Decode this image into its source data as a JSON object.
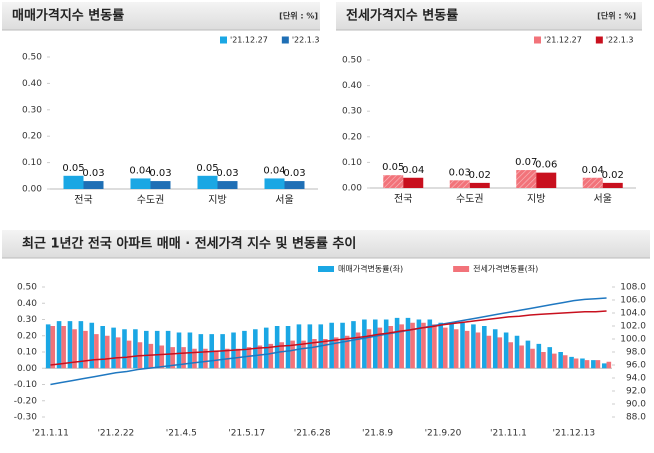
{
  "chart_data": [
    {
      "type": "bar",
      "title": "매매가격지수 변동률",
      "unit": "[단위 : %]",
      "categories": [
        "전국",
        "수도권",
        "지방",
        "서울"
      ],
      "series": [
        {
          "name": "'21.12.27",
          "color": "#1aa7e4",
          "values": [
            0.05,
            0.04,
            0.05,
            0.04
          ]
        },
        {
          "name": "'22.1.3",
          "color": "#1f6fb5",
          "values": [
            0.03,
            0.03,
            0.03,
            0.03
          ]
        }
      ],
      "ylim": [
        0,
        0.5
      ],
      "yticks": [
        {
          "value": 0,
          "label": "0.00"
        },
        {
          "value": 0.1,
          "label": "0.10"
        },
        {
          "value": 0.2,
          "label": "0.20"
        },
        {
          "value": 0.3,
          "label": "0.30"
        },
        {
          "value": 0.4,
          "label": "0.40"
        },
        {
          "value": 0.5,
          "label": "0.50"
        }
      ]
    },
    {
      "type": "bar",
      "title": "전세가격지수 변동률",
      "unit": "[단위 : %]",
      "categories": [
        "전국",
        "수도권",
        "지방",
        "서울"
      ],
      "series": [
        {
          "name": "'21.12.27",
          "color": "#f2737a",
          "hatch": true,
          "values": [
            0.05,
            0.03,
            0.07,
            0.04
          ]
        },
        {
          "name": "'22.1.3",
          "color": "#c8101e",
          "values": [
            0.04,
            0.02,
            0.06,
            0.02
          ]
        }
      ],
      "ylim": [
        0,
        0.5
      ],
      "yticks": [
        {
          "value": 0,
          "label": "0.00"
        },
        {
          "value": 0.1,
          "label": "0.10"
        },
        {
          "value": 0.2,
          "label": "0.20"
        },
        {
          "value": 0.3,
          "label": "0.30"
        },
        {
          "value": 0.4,
          "label": "0.40"
        },
        {
          "value": 0.5,
          "label": "0.50"
        }
      ]
    },
    {
      "type": "combo",
      "title": "최근 1년간 전국 아파트 매매 · 전세가격 지수 및 변동률 추이",
      "categories": [
        "'21.1.11",
        null,
        null,
        null,
        null,
        null,
        "'21.2.22",
        null,
        null,
        null,
        null,
        null,
        "'21.4.5",
        null,
        null,
        null,
        null,
        null,
        "'21.5.17",
        null,
        null,
        null,
        null,
        null,
        "'21.6.28",
        null,
        null,
        null,
        null,
        null,
        "'21.8.9",
        null,
        null,
        null,
        null,
        null,
        "'21.9.20",
        null,
        null,
        null,
        null,
        null,
        "'21.11.1",
        null,
        null,
        null,
        null,
        null,
        "'21.12.13",
        null,
        null,
        null
      ],
      "series": [
        {
          "name": "매매가격변동률(좌)",
          "type": "bar",
          "color": "#1aa7e4",
          "values": [
            0.27,
            0.29,
            0.29,
            0.29,
            0.28,
            0.26,
            0.25,
            0.24,
            0.24,
            0.23,
            0.23,
            0.23,
            0.22,
            0.22,
            0.21,
            0.21,
            0.21,
            0.22,
            0.23,
            0.24,
            0.25,
            0.26,
            0.26,
            0.27,
            0.27,
            0.27,
            0.28,
            0.28,
            0.29,
            0.3,
            0.3,
            0.3,
            0.31,
            0.31,
            0.3,
            0.3,
            0.28,
            0.28,
            0.28,
            0.27,
            0.26,
            0.24,
            0.22,
            0.2,
            0.17,
            0.15,
            0.13,
            0.1,
            0.07,
            0.06,
            0.05,
            0.03
          ]
        },
        {
          "name": "전세가격변동률(좌)",
          "type": "bar",
          "color": "#f2737a",
          "values": [
            0.26,
            0.26,
            0.24,
            0.23,
            0.21,
            0.2,
            0.19,
            0.17,
            0.16,
            0.15,
            0.14,
            0.13,
            0.13,
            0.12,
            0.12,
            0.11,
            0.12,
            0.12,
            0.13,
            0.14,
            0.15,
            0.16,
            0.17,
            0.17,
            0.18,
            0.18,
            0.19,
            0.2,
            0.22,
            0.24,
            0.25,
            0.26,
            0.27,
            0.28,
            0.28,
            0.27,
            0.25,
            0.24,
            0.23,
            0.22,
            0.2,
            0.19,
            0.16,
            0.14,
            0.12,
            0.1,
            0.09,
            0.08,
            0.06,
            0.05,
            0.05,
            0.04
          ]
        },
        {
          "type": "line",
          "axis": "y2",
          "color": "#1f78c1",
          "values": [
            93.0,
            93.3,
            93.6,
            93.9,
            94.2,
            94.5,
            94.8,
            95.0,
            95.3,
            95.5,
            95.7,
            95.9,
            96.1,
            96.3,
            96.5,
            96.7,
            96.9,
            97.1,
            97.3,
            97.5,
            97.7,
            98.0,
            98.2,
            98.5,
            98.7,
            99.0,
            99.3,
            99.6,
            99.9,
            100.2,
            100.5,
            100.8,
            101.1,
            101.4,
            101.7,
            102.0,
            102.3,
            102.6,
            102.9,
            103.2,
            103.5,
            103.8,
            104.1,
            104.4,
            104.7,
            105.0,
            105.3,
            105.6,
            105.9,
            106.1,
            106.2,
            106.3
          ]
        },
        {
          "type": "line",
          "axis": "y2",
          "color": "#c8101e",
          "values": [
            96.0,
            96.2,
            96.4,
            96.6,
            96.8,
            96.9,
            97.1,
            97.2,
            97.4,
            97.5,
            97.6,
            97.7,
            97.8,
            97.9,
            98.0,
            98.1,
            98.2,
            98.3,
            98.4,
            98.6,
            98.7,
            98.9,
            99.0,
            99.2,
            99.4,
            99.6,
            99.8,
            100.0,
            100.2,
            100.4,
            100.7,
            100.9,
            101.2,
            101.4,
            101.7,
            101.9,
            102.2,
            102.4,
            102.6,
            102.8,
            103.0,
            103.2,
            103.4,
            103.5,
            103.7,
            103.8,
            103.9,
            104.0,
            104.1,
            104.2,
            104.2,
            104.3
          ]
        }
      ],
      "ylim": [
        -0.3,
        0.5
      ],
      "yticks": [
        {
          "value": -0.3,
          "label": "-0.30"
        },
        {
          "value": -0.2,
          "label": "-0.20"
        },
        {
          "value": -0.1,
          "label": "-0.10"
        },
        {
          "value": 0,
          "label": "0.00"
        },
        {
          "value": 0.1,
          "label": "0.10"
        },
        {
          "value": 0.2,
          "label": "0.20"
        },
        {
          "value": 0.3,
          "label": "0.30"
        },
        {
          "value": 0.4,
          "label": "0.40"
        },
        {
          "value": 0.5,
          "label": "0.50"
        }
      ],
      "y2lim": [
        88,
        108
      ],
      "y2ticks": [
        {
          "value": 88,
          "label": "88.0"
        },
        {
          "value": 90,
          "label": "90.0"
        },
        {
          "value": 92,
          "label": "92.0"
        },
        {
          "value": 94,
          "label": "94.0"
        },
        {
          "value": 96,
          "label": "96.0"
        },
        {
          "value": 98,
          "label": "98.0"
        },
        {
          "value": 100,
          "label": "100.0"
        },
        {
          "value": 102,
          "label": "102.0"
        },
        {
          "value": 104,
          "label": "104.0"
        },
        {
          "value": 106,
          "label": "106.0"
        },
        {
          "value": 108,
          "label": "108.0"
        }
      ]
    }
  ]
}
